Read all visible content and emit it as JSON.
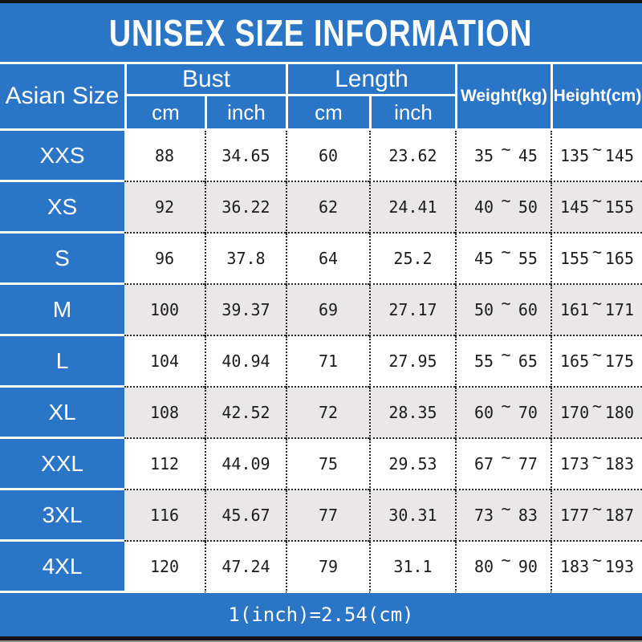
{
  "title": "UNISEX SIZE INFORMATION",
  "header": {
    "asian_size": "Asian Size",
    "bust": "Bust",
    "length": "Length",
    "weight": "Weight(kg)",
    "height": "Height(cm)",
    "cm": "cm",
    "inch": "inch",
    "tilde": "~"
  },
  "footer": {
    "note": "1(inch)=2.54(cm)"
  },
  "colors": {
    "accent_blue": "#2a75c5",
    "alt_row_gray": "#e9e7e8",
    "dotted_border": "#2a2a2a",
    "frame_black": "#141414",
    "text_white": "#ffffff"
  },
  "chart_data": {
    "type": "table",
    "title": "UNISEX SIZE INFORMATION",
    "columns": [
      "Asian Size",
      "Bust cm",
      "Bust inch",
      "Length cm",
      "Length inch",
      "Weight(kg) min",
      "Weight(kg) max",
      "Height(cm) min",
      "Height(cm) max"
    ],
    "rows": [
      [
        "XXS",
        "88",
        "34.65",
        "60",
        "23.62",
        "35",
        "45",
        "135",
        "145"
      ],
      [
        "XS",
        "92",
        "36.22",
        "62",
        "24.41",
        "40",
        "50",
        "145",
        "155"
      ],
      [
        "S",
        "96",
        "37.8",
        "64",
        "25.2",
        "45",
        "55",
        "155",
        "165"
      ],
      [
        "M",
        "100",
        "39.37",
        "69",
        "27.17",
        "50",
        "60",
        "161",
        "171"
      ],
      [
        "L",
        "104",
        "40.94",
        "71",
        "27.95",
        "55",
        "65",
        "165",
        "175"
      ],
      [
        "XL",
        "108",
        "42.52",
        "72",
        "28.35",
        "60",
        "70",
        "170",
        "180"
      ],
      [
        "XXL",
        "112",
        "44.09",
        "75",
        "29.53",
        "67",
        "77",
        "173",
        "183"
      ],
      [
        "3XL",
        "116",
        "45.67",
        "77",
        "30.31",
        "73",
        "83",
        "177",
        "187"
      ],
      [
        "4XL",
        "120",
        "47.24",
        "79",
        "31.1",
        "80",
        "90",
        "183",
        "193"
      ]
    ],
    "note": "1(inch)=2.54(cm)"
  }
}
